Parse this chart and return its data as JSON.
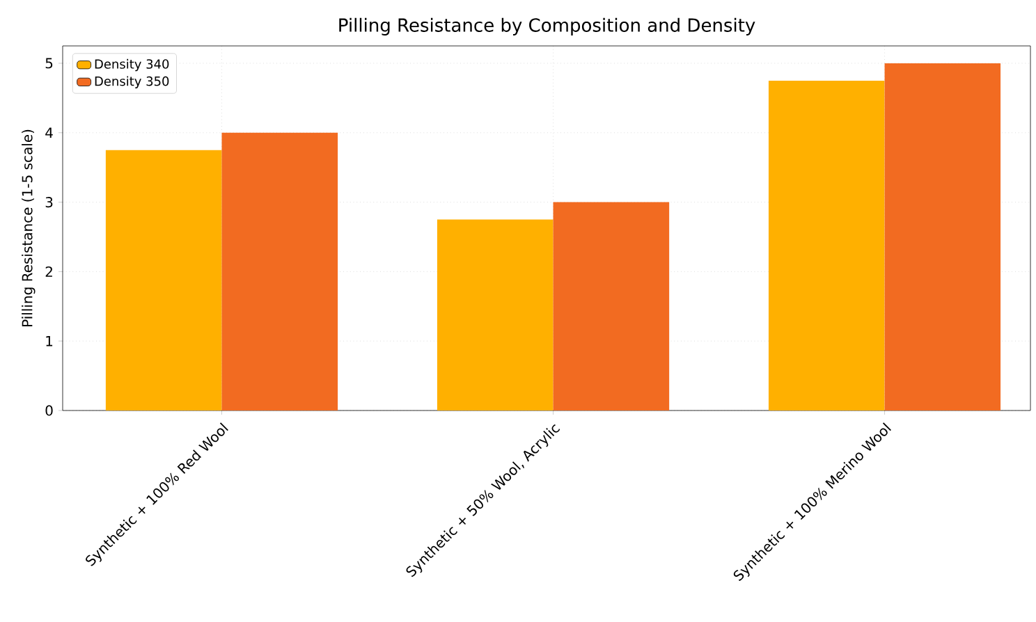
{
  "chart_data": {
    "type": "bar",
    "title": "Pilling Resistance by Composition and Density",
    "ylabel": "Pilling Resistance (1-5 scale)",
    "categories": [
      "Synthetic + 100% Red Wool",
      "Synthetic + 50% Wool, Acrylic",
      "Synthetic + 100% Merino Wool"
    ],
    "series": [
      {
        "name": "Density 340",
        "color": "#ffb000",
        "values": [
          3.75,
          2.75,
          4.75
        ]
      },
      {
        "name": "Density 350",
        "color": "#f26b21",
        "values": [
          4.0,
          3.0,
          5.0
        ]
      }
    ],
    "ylim": [
      0,
      5.25
    ],
    "yticks": [
      0,
      1,
      2,
      3,
      4,
      5
    ],
    "grid": true,
    "legend": "top left"
  }
}
